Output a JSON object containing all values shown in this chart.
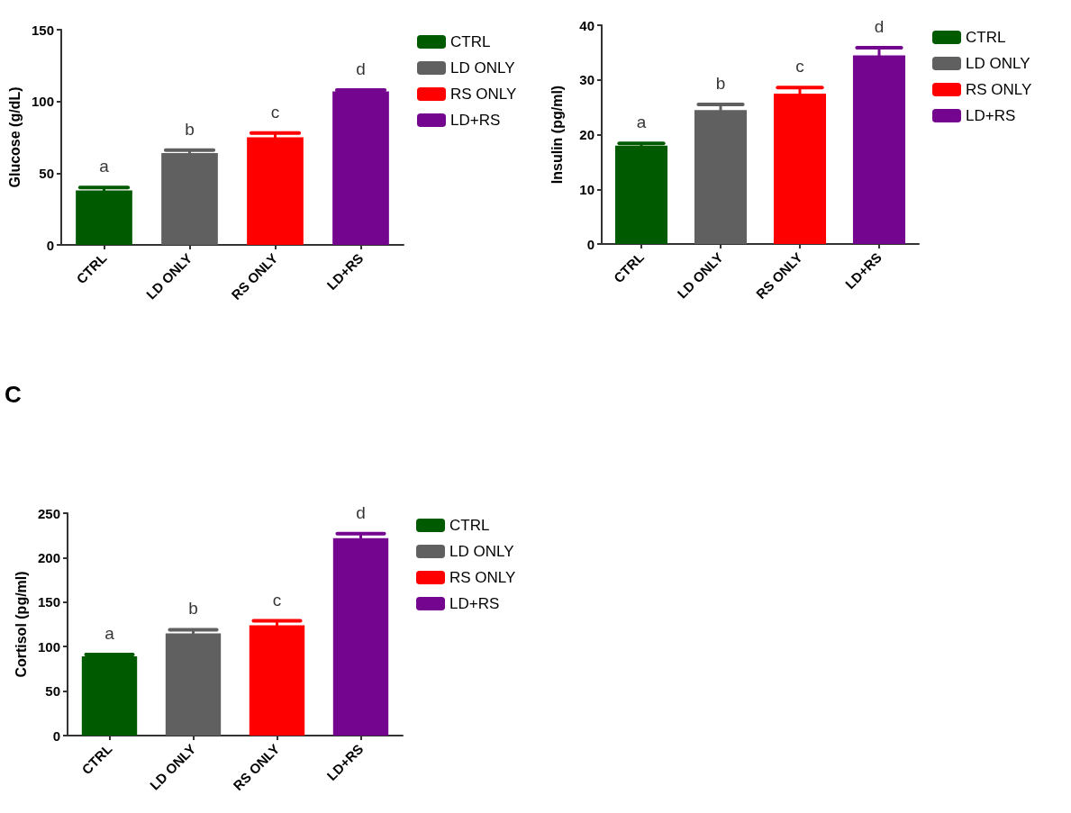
{
  "chart_data": [
    {
      "type": "bar",
      "ylabel": "Glucose (g/dL)",
      "categories": [
        "CTRL",
        "LD ONLY",
        "RS ONLY",
        "LD+RS"
      ],
      "series": [
        {
          "name": "CTRL",
          "color": "#005a00",
          "values": [
            38,
            null,
            null,
            null
          ],
          "errors": [
            2,
            null,
            null,
            null
          ]
        },
        {
          "name": "LD ONLY",
          "color": "#606060",
          "values": [
            null,
            64,
            null,
            null
          ],
          "errors": [
            null,
            2,
            null,
            null
          ]
        },
        {
          "name": "RS ONLY",
          "color": "#ff0000",
          "values": [
            null,
            null,
            75,
            null
          ],
          "errors": [
            null,
            null,
            3,
            null
          ]
        },
        {
          "name": "LD+RS",
          "color": "#74058f",
          "values": [
            null,
            null,
            null,
            107
          ],
          "errors": [
            null,
            null,
            null,
            1
          ]
        }
      ],
      "ylim": [
        0,
        150
      ],
      "yticks": [
        0,
        50,
        100,
        150
      ],
      "legend": "top right",
      "annotations": [
        "a",
        "b",
        "c",
        "d"
      ]
    },
    {
      "type": "bar",
      "ylabel": "Insulin (pg/ml)",
      "categories": [
        "CTRL",
        "LD ONLY",
        "RS ONLY",
        "LD+RS"
      ],
      "series": [
        {
          "name": "CTRL",
          "color": "#005a00",
          "values": [
            18,
            null,
            null,
            null
          ],
          "errors": [
            0.4,
            null,
            null,
            null
          ]
        },
        {
          "name": "LD ONLY",
          "color": "#606060",
          "values": [
            null,
            24.5,
            null,
            null
          ],
          "errors": [
            null,
            1,
            null,
            null
          ]
        },
        {
          "name": "RS ONLY",
          "color": "#ff0000",
          "values": [
            null,
            null,
            27.5,
            null
          ],
          "errors": [
            null,
            null,
            1.1,
            null
          ]
        },
        {
          "name": "LD+RS",
          "color": "#74058f",
          "values": [
            null,
            null,
            null,
            34.5
          ],
          "errors": [
            null,
            null,
            null,
            1.4
          ]
        }
      ],
      "ylim": [
        0,
        40
      ],
      "yticks": [
        0,
        10,
        20,
        30,
        40
      ],
      "legend": "top right",
      "annotations": [
        "a",
        "b",
        "c",
        "d"
      ]
    },
    {
      "type": "bar",
      "title": "C",
      "ylabel": "Cortisol (pg/ml)",
      "categories": [
        "CTRL",
        "LD ONLY",
        "RS ONLY",
        "LD+RS"
      ],
      "series": [
        {
          "name": "CTRL",
          "color": "#005a00",
          "values": [
            89,
            null,
            null,
            null
          ],
          "errors": [
            2,
            null,
            null,
            null
          ]
        },
        {
          "name": "LD ONLY",
          "color": "#606060",
          "values": [
            null,
            115,
            null,
            null
          ],
          "errors": [
            null,
            4,
            null,
            null
          ]
        },
        {
          "name": "RS ONLY",
          "color": "#ff0000",
          "values": [
            null,
            null,
            124,
            null
          ],
          "errors": [
            null,
            null,
            5,
            null
          ]
        },
        {
          "name": "LD+RS",
          "color": "#74058f",
          "values": [
            null,
            null,
            null,
            222
          ],
          "errors": [
            null,
            null,
            null,
            5
          ]
        }
      ],
      "ylim": [
        0,
        250
      ],
      "yticks": [
        0,
        50,
        100,
        150,
        200,
        250
      ],
      "legend": "top right",
      "annotations": [
        "a",
        "b",
        "c",
        "d"
      ]
    }
  ]
}
